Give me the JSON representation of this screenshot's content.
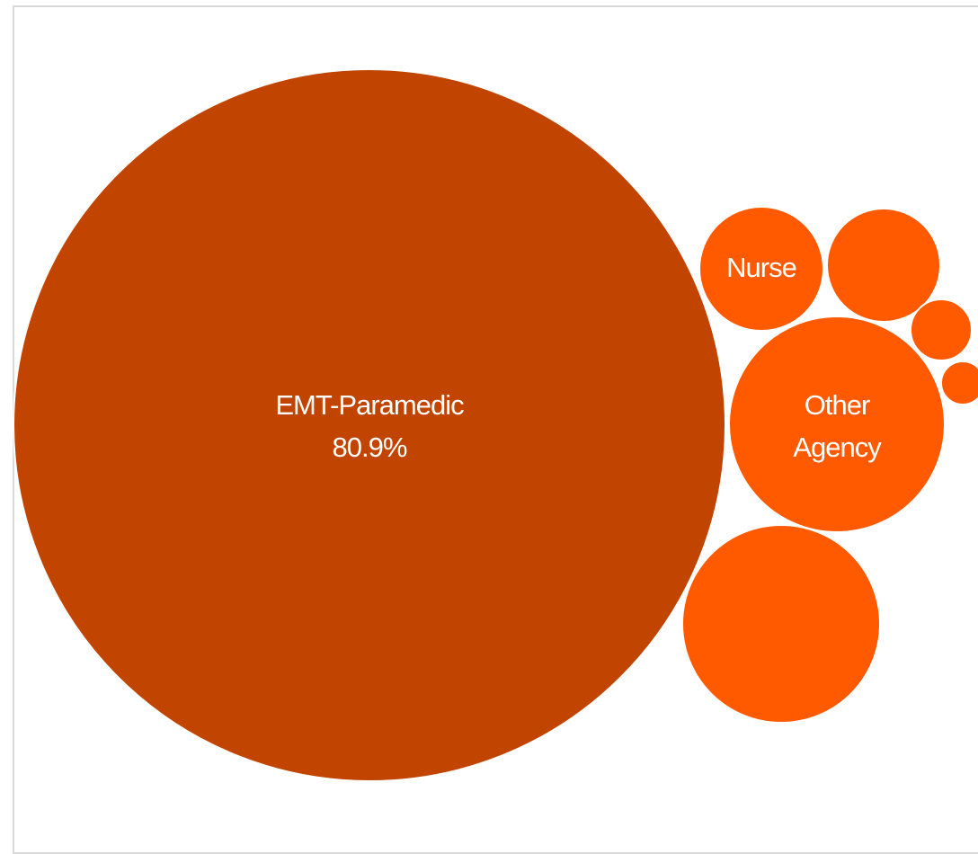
{
  "chart_data": {
    "type": "bubble",
    "colors": {
      "primary": "#c14400",
      "secondary": "#ff5a00"
    },
    "bubbles": [
      {
        "category": "EMT-Paramedic",
        "value_label": "80.9%",
        "value": 80.9,
        "color": "#c14400",
        "label_lines": [
          "EMT-Paramedic",
          "80.9%"
        ]
      },
      {
        "category": "Nurse",
        "value": 2.4,
        "color": "#ff5a00",
        "label_lines": [
          "Nurse"
        ]
      },
      {
        "category": "",
        "value": 2.2,
        "color": "#ff5a00",
        "label_lines": []
      },
      {
        "category": "",
        "value": 0.4,
        "color": "#ff5a00",
        "label_lines": []
      },
      {
        "category": "",
        "value": 0.2,
        "color": "#ff5a00",
        "label_lines": []
      },
      {
        "category": "Other Agency",
        "value": 7.4,
        "color": "#ff5a00",
        "label_lines": [
          "Other",
          "Agency"
        ]
      },
      {
        "category": "",
        "value": 6.5,
        "color": "#ff5a00",
        "label_lines": []
      }
    ]
  }
}
